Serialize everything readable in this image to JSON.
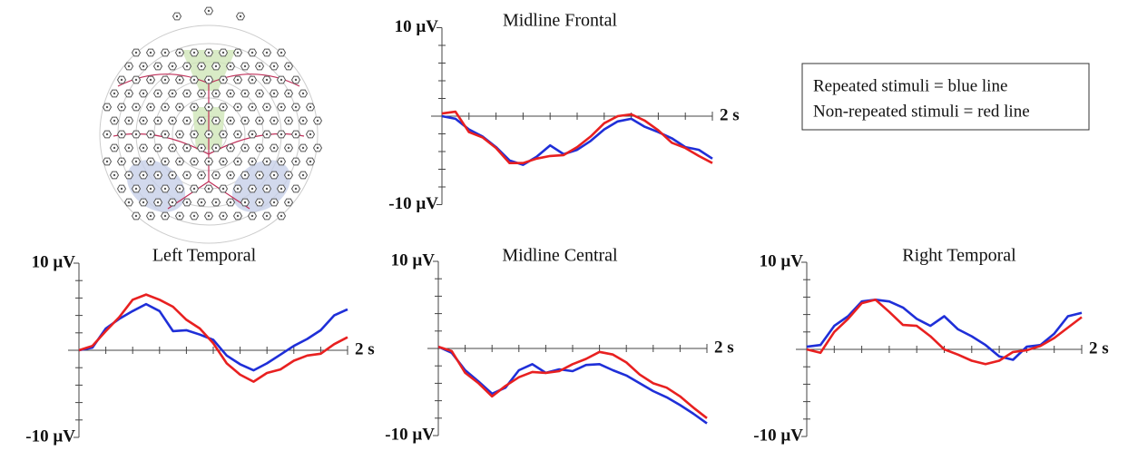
{
  "legend": [
    "Repeated stimuli = blue line",
    "Non-repeated stimuli = red line"
  ],
  "chart_data": [
    {
      "type": "line",
      "title": "Midline Frontal",
      "x": [
        0,
        0.1,
        0.2,
        0.3,
        0.4,
        0.5,
        0.6,
        0.7,
        0.8,
        0.9,
        1.0,
        1.1,
        1.2,
        1.3,
        1.4,
        1.5,
        1.6,
        1.7,
        1.8,
        1.9,
        2.0
      ],
      "series": [
        {
          "color": "#1f2fd8",
          "values": [
            0,
            -0.3,
            -1.5,
            -2.3,
            -3.5,
            -5,
            -5.5,
            -4.6,
            -3.3,
            -4.3,
            -3.8,
            -2.8,
            -1.5,
            -0.6,
            -0.3,
            -1.2,
            -1.8,
            -2.5,
            -3.5,
            -3.8,
            -4.8
          ]
        },
        {
          "color": "#e82020",
          "values": [
            0.3,
            0.5,
            -1.8,
            -2.4,
            -3.6,
            -5.3,
            -5.3,
            -4.8,
            -4.5,
            -4.4,
            -3.5,
            -2.3,
            -0.8,
            0,
            0.2,
            -0.5,
            -1.6,
            -3,
            -3.6,
            -4.5,
            -5.3
          ]
        }
      ],
      "xlim": [
        0,
        2
      ],
      "ylim": [
        -10,
        10
      ],
      "xticks": [
        {
          "value": 2,
          "label": "2 s"
        }
      ],
      "yticks": [
        {
          "value": -10,
          "label": "-10 µV"
        },
        {
          "value": 10,
          "label": "10 µV"
        }
      ],
      "xminorticks": [
        0.2,
        0.4,
        0.6,
        0.8,
        1.0,
        1.2,
        1.4,
        1.6,
        1.8
      ],
      "yminorticks": [
        -8,
        -6,
        -4,
        -2,
        2,
        4,
        6,
        8
      ]
    },
    {
      "type": "line",
      "title": "Left Temporal",
      "x": [
        0,
        0.1,
        0.2,
        0.3,
        0.4,
        0.5,
        0.6,
        0.7,
        0.8,
        0.9,
        1.0,
        1.1,
        1.2,
        1.3,
        1.4,
        1.5,
        1.6,
        1.7,
        1.8,
        1.9,
        2.0
      ],
      "series": [
        {
          "color": "#1f2fd8",
          "values": [
            0,
            0.3,
            2.5,
            3.6,
            4.5,
            5.3,
            4.5,
            2.2,
            2.3,
            1.8,
            1.2,
            -0.6,
            -1.6,
            -2.3,
            -1.5,
            -0.5,
            0.5,
            1.3,
            2.3,
            4,
            4.7
          ]
        },
        {
          "color": "#e82020",
          "values": [
            0,
            0.5,
            2.2,
            3.8,
            5.8,
            6.4,
            5.8,
            5,
            3.5,
            2.5,
            0.8,
            -1.5,
            -2.8,
            -3.6,
            -2.6,
            -2.2,
            -1.2,
            -0.6,
            -0.4,
            0.7,
            1.5
          ]
        }
      ],
      "xlim": [
        0,
        2
      ],
      "ylim": [
        -10,
        10
      ],
      "xticks": [
        {
          "value": 2,
          "label": "2 s"
        }
      ],
      "yticks": [
        {
          "value": -10,
          "label": "-10 µV"
        },
        {
          "value": 10,
          "label": "10 µV"
        }
      ],
      "xminorticks": [
        0.2,
        0.4,
        0.6,
        0.8,
        1.0,
        1.2,
        1.4,
        1.6,
        1.8
      ],
      "yminorticks": [
        -8,
        -6,
        -4,
        -2,
        2,
        4,
        6,
        8
      ]
    },
    {
      "type": "line",
      "title": "Midline Central",
      "x": [
        0,
        0.1,
        0.2,
        0.3,
        0.4,
        0.5,
        0.6,
        0.7,
        0.8,
        0.9,
        1.0,
        1.1,
        1.2,
        1.3,
        1.4,
        1.5,
        1.6,
        1.7,
        1.8,
        1.9,
        2.0
      ],
      "series": [
        {
          "color": "#1f2fd8",
          "values": [
            0.2,
            -0.5,
            -2.5,
            -3.8,
            -5.2,
            -4.5,
            -2.5,
            -1.8,
            -2.8,
            -2.4,
            -2.6,
            -1.9,
            -1.8,
            -2.5,
            -3.1,
            -4,
            -4.9,
            -5.6,
            -6.5,
            -7.5,
            -8.6
          ]
        },
        {
          "color": "#e82020",
          "values": [
            0.2,
            -0.3,
            -2.8,
            -4,
            -5.5,
            -4.3,
            -3.3,
            -2.7,
            -2.8,
            -2.6,
            -1.8,
            -1.2,
            -0.4,
            -0.7,
            -1.6,
            -3,
            -4,
            -4.5,
            -5.5,
            -6.8,
            -8
          ]
        }
      ],
      "xlim": [
        0,
        2
      ],
      "ylim": [
        -10,
        10
      ],
      "xticks": [
        {
          "value": 2,
          "label": "2 s"
        }
      ],
      "yticks": [
        {
          "value": -10,
          "label": "-10 µV"
        },
        {
          "value": 10,
          "label": "10 µV"
        }
      ],
      "xminorticks": [
        0.2,
        0.4,
        0.6,
        0.8,
        1.0,
        1.2,
        1.4,
        1.6,
        1.8
      ],
      "yminorticks": [
        -8,
        -6,
        -4,
        -2,
        2,
        4,
        6,
        8
      ]
    },
    {
      "type": "line",
      "title": "Right Temporal",
      "x": [
        0,
        0.1,
        0.2,
        0.3,
        0.4,
        0.5,
        0.6,
        0.7,
        0.8,
        0.9,
        1.0,
        1.1,
        1.2,
        1.3,
        1.4,
        1.5,
        1.6,
        1.7,
        1.8,
        1.9,
        2.0
      ],
      "series": [
        {
          "color": "#1f2fd8",
          "values": [
            0.3,
            0.5,
            2.7,
            3.8,
            5.5,
            5.7,
            5.5,
            4.8,
            3.5,
            2.7,
            3.8,
            2.3,
            1.5,
            0.5,
            -0.8,
            -1.2,
            0.3,
            0.5,
            1.8,
            3.8,
            4.2
          ]
        },
        {
          "color": "#e82020",
          "values": [
            0,
            -0.4,
            2,
            3.5,
            5.3,
            5.7,
            4.3,
            2.8,
            2.7,
            1.5,
            0,
            -0.6,
            -1.3,
            -1.7,
            -1.3,
            -0.3,
            -0.1,
            0.4,
            1.3,
            2.5,
            3.7
          ]
        }
      ],
      "xlim": [
        0,
        2
      ],
      "ylim": [
        -10,
        10
      ],
      "xticks": [
        {
          "value": 2,
          "label": "2 s"
        }
      ],
      "yticks": [
        {
          "value": -10,
          "label": "-10 µV"
        },
        {
          "value": 10,
          "label": "10 µV"
        }
      ],
      "xminorticks": [
        0.2,
        0.4,
        0.6,
        0.8,
        1.0,
        1.2,
        1.4,
        1.6,
        1.8
      ],
      "yminorticks": [
        -8,
        -6,
        -4,
        -2,
        2,
        4,
        6,
        8
      ]
    }
  ]
}
